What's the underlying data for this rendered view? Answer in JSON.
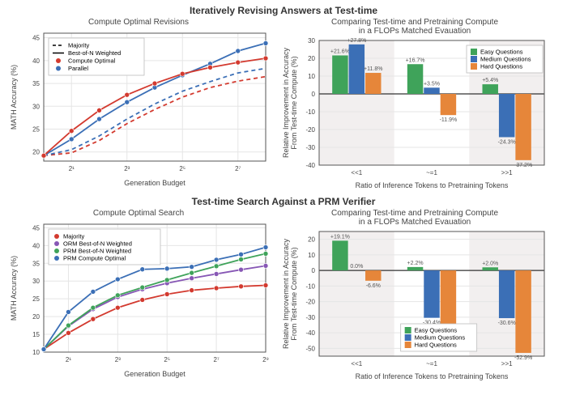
{
  "section1": {
    "title": "Iteratively Revising Answers at Test-time",
    "left": {
      "title": "Compute Optimal Revisions",
      "xlabel": "Generation Budget",
      "ylabel": "MATH Accuracy (%)",
      "xticks": [
        1,
        3,
        5,
        7
      ],
      "xtick_labels": [
        "2¹",
        "2³",
        "2⁵",
        "2⁷"
      ],
      "ylim": [
        18,
        46
      ],
      "yticks": [
        20,
        25,
        30,
        35,
        40,
        45
      ],
      "legend": [
        {
          "label": "Majority",
          "style": "dash",
          "marker": "",
          "color": "#000000"
        },
        {
          "label": "Best-of-N Weighted",
          "style": "solid",
          "marker": "",
          "color": "#000000"
        },
        {
          "label": "Compute Optimal",
          "style": "solid",
          "marker": "circle",
          "color": "#d33a2f"
        },
        {
          "label": "Parallel",
          "style": "solid",
          "marker": "circle",
          "color": "#3b6fb6"
        }
      ],
      "series": [
        {
          "key": "red_dash",
          "color": "#d33a2f",
          "dash": true,
          "marker": false,
          "x": [
            0,
            1,
            2,
            3,
            4,
            5,
            6,
            7,
            8
          ],
          "y": [
            19.2,
            19.8,
            22.5,
            26.2,
            29.3,
            32.0,
            34.1,
            35.5,
            36.5
          ]
        },
        {
          "key": "blue_dash",
          "color": "#3b6fb6",
          "dash": true,
          "marker": false,
          "x": [
            0,
            1,
            2,
            3,
            4,
            5,
            6,
            7,
            8
          ],
          "y": [
            19.2,
            20.5,
            23.5,
            27.2,
            30.5,
            33.3,
            35.4,
            37.3,
            38.3
          ]
        },
        {
          "key": "blue_solid",
          "color": "#3b6fb6",
          "dash": false,
          "marker": true,
          "x": [
            0,
            1,
            2,
            3,
            4,
            5,
            6,
            7,
            8
          ],
          "y": [
            19.2,
            22.8,
            27.2,
            30.9,
            34.1,
            36.8,
            39.3,
            42.1,
            43.8
          ]
        },
        {
          "key": "red_solid",
          "color": "#d33a2f",
          "dash": false,
          "marker": true,
          "x": [
            0,
            1,
            2,
            3,
            4,
            5,
            6,
            7,
            8
          ],
          "y": [
            19.2,
            24.6,
            29.1,
            32.5,
            35.0,
            37.1,
            38.5,
            39.6,
            40.5
          ]
        }
      ],
      "grid_color": "#e5e5e5",
      "bg": "#ffffff",
      "frame": "#555555"
    },
    "right": {
      "title_line1": "Comparing Test-time and Pretraining Compute",
      "title_line2": "in a FLOPs Matched Evauation",
      "xlabel": "Ratio of Inference Tokens to Pretraining Tokens",
      "ylabel": "Relative Improvement in Accuracy\nFrom Test-time Compute (%)",
      "xtick_labels": [
        "<<1",
        "~=1",
        ">>1"
      ],
      "ylim": [
        -40,
        30
      ],
      "yticks": [
        -40,
        -30,
        -20,
        -10,
        0,
        10,
        20,
        30
      ],
      "colors": {
        "easy": "#3fa35a",
        "medium": "#3b6fb6",
        "hard": "#e6863a"
      },
      "legend": [
        {
          "label": "Easy Questions",
          "color": "#3fa35a"
        },
        {
          "label": "Medium Questions",
          "color": "#3b6fb6"
        },
        {
          "label": "Hard Questions",
          "color": "#e6863a"
        }
      ],
      "groups": [
        {
          "vals": [
            21.6,
            27.8,
            11.8
          ],
          "labels": [
            "+21.6%",
            "+27.8%",
            "+11.8%"
          ]
        },
        {
          "vals": [
            16.7,
            3.5,
            -11.9
          ],
          "labels": [
            "+16.7%",
            "+3.5%",
            "-11.9%"
          ]
        },
        {
          "vals": [
            5.4,
            -24.3,
            -37.2
          ],
          "labels": [
            "+5.4%",
            "-24.3%",
            "-37.2%"
          ]
        }
      ],
      "bg_band": "#f2efef",
      "bg": "#ffffff",
      "frame": "#555555"
    }
  },
  "section2": {
    "title": "Test-time Search Against a PRM Verifier",
    "left": {
      "title": "Compute Optimal Search",
      "xlabel": "Generation Budget",
      "ylabel": "MATH Accuracy (%)",
      "xticks": [
        1,
        3,
        5,
        7,
        9
      ],
      "xtick_labels": [
        "2¹",
        "2³",
        "2⁵",
        "2⁷",
        "2⁹"
      ],
      "ylim": [
        10,
        46
      ],
      "yticks": [
        10,
        15,
        20,
        25,
        30,
        35,
        40,
        45
      ],
      "legend": [
        {
          "label": "Majority",
          "color": "#d33a2f"
        },
        {
          "label": "ORM Best-of-N Weighted",
          "color": "#8757b5"
        },
        {
          "label": "PRM Best-of-N Weighted",
          "color": "#3fa35a"
        },
        {
          "label": "PRM Compute Optimal",
          "color": "#3b6fb6"
        }
      ],
      "series": [
        {
          "color": "#d33a2f",
          "x": [
            0,
            1,
            2,
            3,
            4,
            5,
            6,
            7,
            8,
            9
          ],
          "y": [
            10.8,
            15.4,
            19.3,
            22.5,
            24.7,
            26.3,
            27.4,
            28.0,
            28.5,
            28.8
          ]
        },
        {
          "color": "#8757b5",
          "x": [
            0,
            1,
            2,
            3,
            4,
            5,
            6,
            7,
            8,
            9
          ],
          "y": [
            10.8,
            17.3,
            22.1,
            25.5,
            27.7,
            29.4,
            30.8,
            32.0,
            33.2,
            34.3
          ]
        },
        {
          "color": "#3fa35a",
          "x": [
            0,
            1,
            2,
            3,
            4,
            5,
            6,
            7,
            8,
            9
          ],
          "y": [
            10.8,
            17.5,
            22.5,
            26.0,
            28.2,
            30.3,
            32.3,
            34.2,
            36.1,
            37.7
          ]
        },
        {
          "color": "#3b6fb6",
          "x": [
            0,
            1,
            2,
            3,
            4,
            5,
            6,
            7,
            8,
            9
          ],
          "y": [
            10.8,
            21.3,
            27.0,
            30.5,
            33.3,
            33.5,
            34.0,
            36.0,
            37.5,
            39.5
          ]
        }
      ],
      "grid_color": "#e5e5e5",
      "bg": "#ffffff",
      "frame": "#555555"
    },
    "right": {
      "title_line1": "Comparing Test-time and Pretraining Compute",
      "title_line2": "in a FLOPs Matched Evauation",
      "xlabel": "Ratio of Inference Tokens to Pretraining Tokens",
      "ylabel": "Relative Improvement in Accuracy\nFrom Test-time Compute (%)",
      "xtick_labels": [
        "<<1",
        "~=1",
        ">>1"
      ],
      "ylim": [
        -55,
        25
      ],
      "yticks": [
        -50,
        -40,
        -30,
        -20,
        -10,
        0,
        10,
        20
      ],
      "colors": {
        "easy": "#3fa35a",
        "medium": "#3b6fb6",
        "hard": "#e6863a"
      },
      "legend": [
        {
          "label": "Easy Questions",
          "color": "#3fa35a"
        },
        {
          "label": "Medium Questions",
          "color": "#3b6fb6"
        },
        {
          "label": "Hard Questions",
          "color": "#e6863a"
        }
      ],
      "groups": [
        {
          "vals": [
            19.1,
            0.0,
            -6.6
          ],
          "labels": [
            "+19.1%",
            "0.0%",
            "-6.6%"
          ]
        },
        {
          "vals": [
            2.2,
            -30.4,
            -35.3
          ],
          "labels": [
            "+2.2%",
            "-30.4%",
            "-35.3%"
          ]
        },
        {
          "vals": [
            2.0,
            -30.6,
            -52.9
          ],
          "labels": [
            "+2.0%",
            "-30.6%",
            "-52.9%"
          ]
        }
      ],
      "bg_band": "#f2efef",
      "bg": "#ffffff",
      "frame": "#555555"
    }
  }
}
